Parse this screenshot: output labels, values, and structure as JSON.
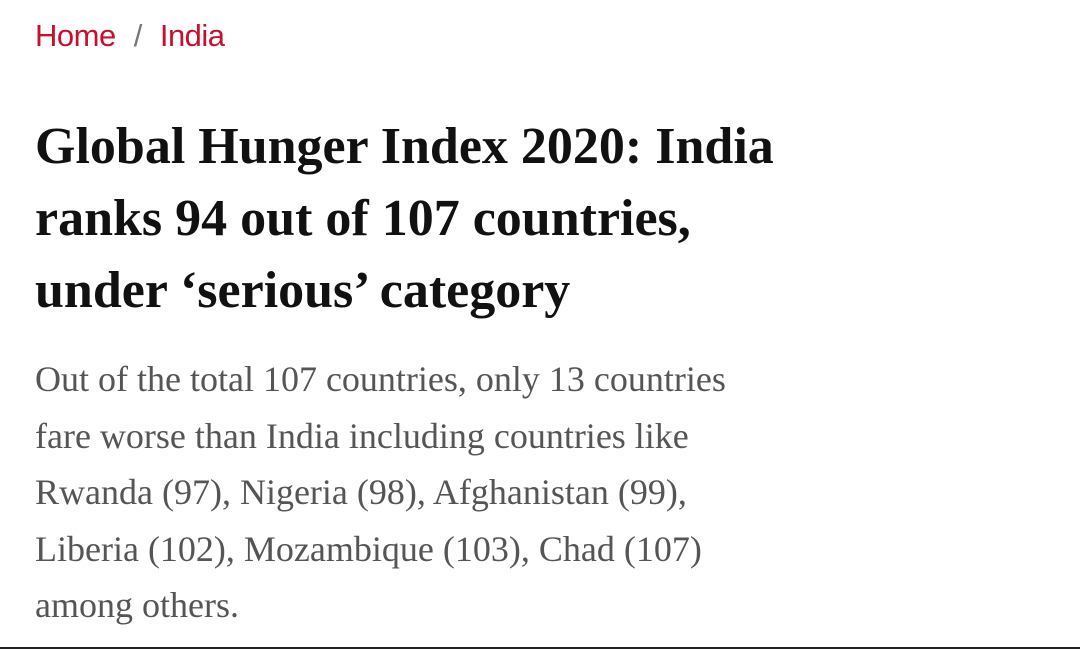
{
  "breadcrumb": {
    "items": [
      "Home",
      "India"
    ],
    "separator": "/"
  },
  "headline": {
    "lines": [
      "Global Hunger Index 2020: India",
      "ranks 94 out of 107 countries,",
      "under ‘serious’ category"
    ]
  },
  "summary": {
    "lines": [
      "Out of the total 107 countries, only 13 countries",
      "fare worse than India including countries like",
      "Rwanda (97), Nigeria (98), Afghanistan (99),",
      "Liberia (102), Mozambique (103), Chad (107)",
      "among others."
    ]
  }
}
